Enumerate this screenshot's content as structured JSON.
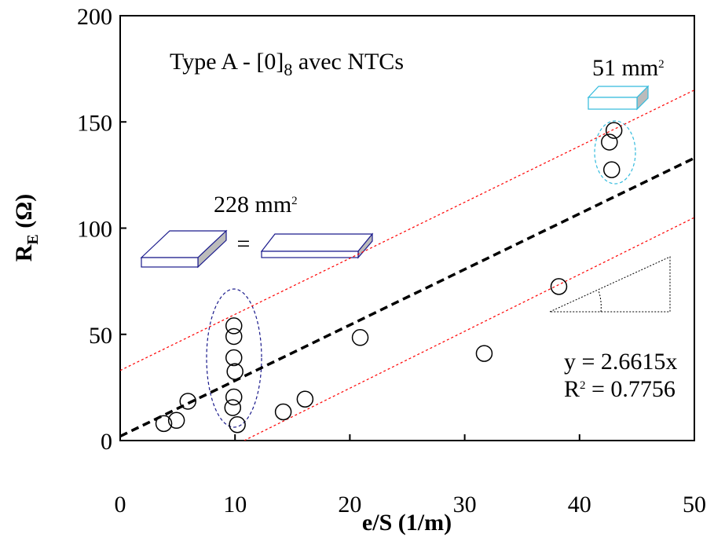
{
  "chart_data": {
    "type": "scatter",
    "title_parts": [
      "Type A - [0]",
      "8",
      " avec NTCs"
    ],
    "xlabel": "e/S (1/m)",
    "ylabel_parts": [
      "R",
      "E",
      " (Ω)"
    ],
    "x": [
      3.8,
      4.9,
      5.9,
      9.9,
      9.9,
      9.9,
      10.0,
      9.9,
      9.8,
      10.2,
      14.2,
      16.1,
      20.9,
      31.7,
      38.2,
      42.6,
      43.0,
      42.8
    ],
    "values": [
      8,
      9.5,
      18.5,
      54,
      49,
      39,
      32.5,
      20.5,
      15.5,
      7.5,
      13.5,
      19.5,
      48.5,
      41,
      72.5,
      140.5,
      146,
      127.5
    ],
    "color": "#000000",
    "lines": [
      {
        "x": [
          0,
          50
        ],
        "values": [
          2,
          133
        ],
        "color": "#000000",
        "style": "thick-dashed"
      },
      {
        "x": [
          0,
          50
        ],
        "values": [
          33,
          165
        ],
        "color": "#ff0000",
        "style": "dotted"
      },
      {
        "x": [
          10.8,
          50
        ],
        "values": [
          0,
          105
        ],
        "color": "#ff0000",
        "style": "dotted"
      }
    ],
    "annotations": {
      "area_large": [
        "228 mm",
        "2"
      ],
      "area_small": [
        "51 mm",
        "2"
      ],
      "equals": "=",
      "equation": "y = 2.6615x",
      "r2_parts": [
        "R",
        "2",
        " = 0.7756"
      ]
    },
    "xlim": [
      0,
      50
    ],
    "xticks": [
      0,
      10,
      20,
      30,
      40,
      50
    ],
    "ylim": [
      0,
      200
    ],
    "yticks": [
      0,
      50,
      100,
      150,
      200
    ]
  }
}
